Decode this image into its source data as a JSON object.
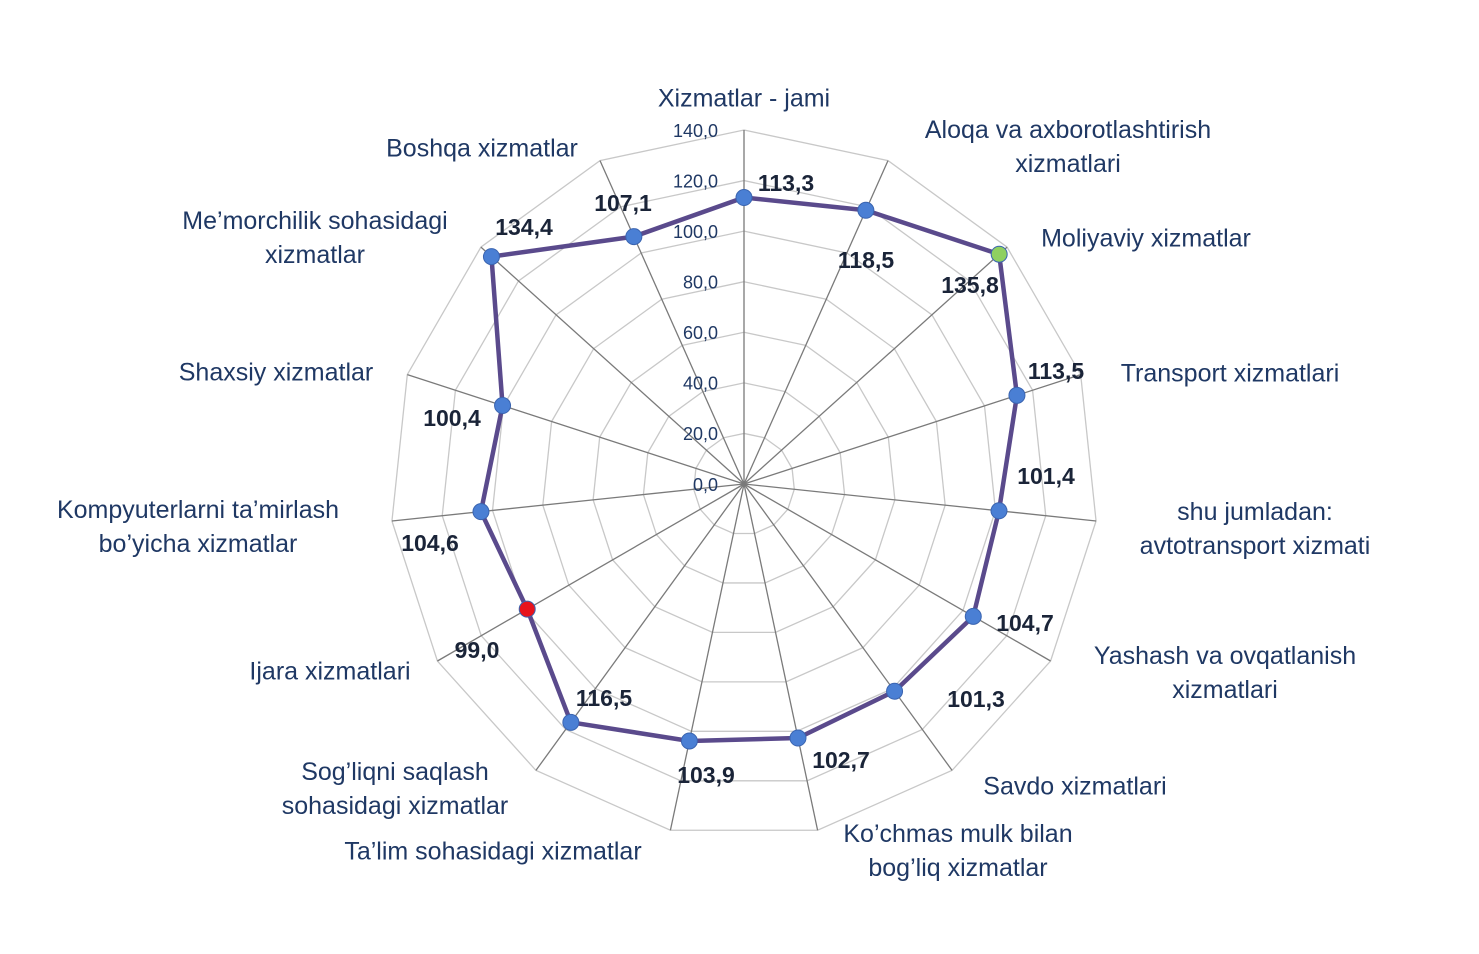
{
  "chart_data": {
    "type": "radar",
    "categories": [
      "Xizmatlar - jami",
      "Aloqa va axborotlashtirish\nxizmatlari",
      "Moliyaviy xizmatlar",
      "Transport xizmatlari",
      "shu jumladan:\navtotransport xizmati",
      "Yashash va ovqatlanish\nxizmatlari",
      "Savdo xizmatlari",
      "Ko’chmas mulk bilan\nbog’liq xizmatlar",
      "Ta’lim sohasidagi  xizmatlar",
      "Sog’liqni saqlash\nsohasidagi xizmatlar",
      "Ijara xizmatlari",
      "Kompyuterlarni ta’mirlash\nbo’yicha xizmatlar",
      "Shaxsiy xizmatlar",
      "Me’morchilik sohasidagi\nxizmatlar",
      "Boshqa xizmatlar"
    ],
    "series": [
      {
        "color": "#5a4a8c",
        "values": [
          113.3,
          118.5,
          135.8,
          113.5,
          101.4,
          104.7,
          101.3,
          102.7,
          103.9,
          116.5,
          99.0,
          104.6,
          100.4,
          134.4,
          107.1
        ],
        "value_labels": [
          "113,3",
          "118,5",
          "135,8",
          "113,5",
          "101,4",
          "104,7",
          "101,3",
          "102,7",
          "103,9",
          "116,5",
          "99,0",
          "104,6",
          "100,4",
          "134,4",
          "107,1"
        ],
        "marker_colors": [
          "#4a7fd4",
          "#4a7fd4",
          "#8fd060",
          "#4a7fd4",
          "#4a7fd4",
          "#4a7fd4",
          "#4a7fd4",
          "#4a7fd4",
          "#4a7fd4",
          "#4a7fd4",
          "#e8141c",
          "#4a7fd4",
          "#4a7fd4",
          "#4a7fd4",
          "#4a7fd4"
        ]
      }
    ],
    "ylim": [
      0,
      140
    ],
    "yticks": [
      {
        "value": 0,
        "label": "0,0"
      },
      {
        "value": 20,
        "label": "20,0"
      },
      {
        "value": 40,
        "label": "40,0"
      },
      {
        "value": 60,
        "label": "60,0"
      },
      {
        "value": 80,
        "label": "80,0"
      },
      {
        "value": 100,
        "label": "100,0"
      },
      {
        "value": 120,
        "label": "120,0"
      },
      {
        "value": 140,
        "label": "140,0"
      }
    ],
    "grid": true
  }
}
